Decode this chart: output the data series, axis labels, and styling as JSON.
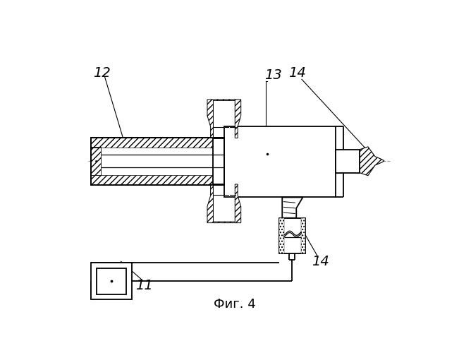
{
  "title": "Фиг. 4",
  "title_fontsize": 13,
  "background_color": "#ffffff",
  "line_color": "#000000",
  "centerline_color": "#aaaaaa",
  "lw": 1.3
}
